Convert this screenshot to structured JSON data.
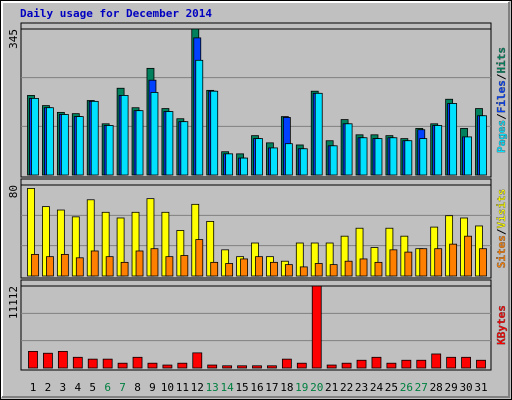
{
  "chart_data": [
    {
      "type": "bar",
      "title": "Daily usage for December 2014",
      "ylim": [
        0,
        345
      ],
      "yticks": [
        345
      ],
      "grid": true,
      "legend_separator": "/",
      "series": [
        {
          "name": "Hits",
          "color": "#00805c",
          "values": [
            188,
            164,
            148,
            145,
            176,
            121,
            205,
            159,
            252,
            157,
            133,
            345,
            200,
            55,
            50,
            93,
            76,
            138,
            71,
            198,
            81,
            131,
            95,
            95,
            93,
            86,
            110,
            121,
            179,
            110,
            157
          ]
        },
        {
          "name": "Files",
          "color": "#0040ff",
          "values": [
            181,
            159,
            143,
            138,
            174,
            117,
            188,
            152,
            224,
            150,
            126,
            324,
            198,
            50,
            40,
            86,
            64,
            136,
            62,
            193,
            69,
            121,
            88,
            86,
            88,
            81,
            107,
            117,
            169,
            90,
            140
          ]
        },
        {
          "name": "Pages",
          "color": "#00e0ff",
          "values": [
            181,
            159,
            143,
            138,
            174,
            117,
            188,
            152,
            195,
            150,
            126,
            271,
            198,
            50,
            40,
            86,
            64,
            74,
            62,
            193,
            69,
            121,
            88,
            86,
            88,
            81,
            86,
            117,
            169,
            90,
            140
          ]
        }
      ]
    },
    {
      "type": "bar",
      "ylim": [
        0,
        80
      ],
      "yticks": [
        80
      ],
      "grid": true,
      "legend_separator": "/",
      "series": [
        {
          "name": "Visits",
          "color": "#ffff00",
          "values": [
            77,
            61,
            58,
            52,
            67,
            56,
            51,
            56,
            68,
            56,
            40,
            63,
            48,
            23,
            17,
            29,
            17,
            13,
            29,
            29,
            29,
            35,
            42,
            25,
            42,
            35,
            24,
            43,
            53,
            51,
            44
          ]
        },
        {
          "name": "Sites",
          "color": "#ff8000",
          "values": [
            19,
            17,
            19,
            16,
            22,
            17,
            12,
            22,
            24,
            17,
            18,
            32,
            12,
            11,
            15,
            17,
            12,
            10,
            8,
            11,
            10,
            13,
            15,
            12,
            23,
            21,
            24,
            24,
            28,
            35,
            24
          ]
        }
      ]
    },
    {
      "type": "bar",
      "ylim": [
        0,
        11112
      ],
      "yticks": [
        11112
      ],
      "grid": true,
      "categories": [
        "1",
        "2",
        "3",
        "4",
        "5",
        "6",
        "7",
        "8",
        "9",
        "10",
        "11",
        "12",
        "13",
        "14",
        "15",
        "16",
        "17",
        "18",
        "19",
        "20",
        "21",
        "22",
        "23",
        "24",
        "25",
        "26",
        "27",
        "28",
        "29",
        "30",
        "31"
      ],
      "category_colors": [
        "#000000",
        "#000000",
        "#000000",
        "#000000",
        "#000000",
        "#008040",
        "#008040",
        "#000000",
        "#000000",
        "#000000",
        "#000000",
        "#000000",
        "#008040",
        "#008040",
        "#000000",
        "#000000",
        "#000000",
        "#000000",
        "#008040",
        "#008040",
        "#000000",
        "#000000",
        "#000000",
        "#000000",
        "#000000",
        "#008040",
        "#008040",
        "#000000",
        "#000000",
        "#000000",
        "#000000"
      ],
      "series": [
        {
          "name": "KBytes",
          "color": "#ff0000",
          "values": [
            2250,
            2000,
            2250,
            1450,
            1200,
            1200,
            650,
            1450,
            650,
            400,
            650,
            2050,
            400,
            300,
            300,
            300,
            300,
            1200,
            650,
            11112,
            400,
            650,
            1050,
            1450,
            650,
            1050,
            1050,
            1900,
            1450,
            1450,
            1050
          ]
        }
      ]
    }
  ]
}
